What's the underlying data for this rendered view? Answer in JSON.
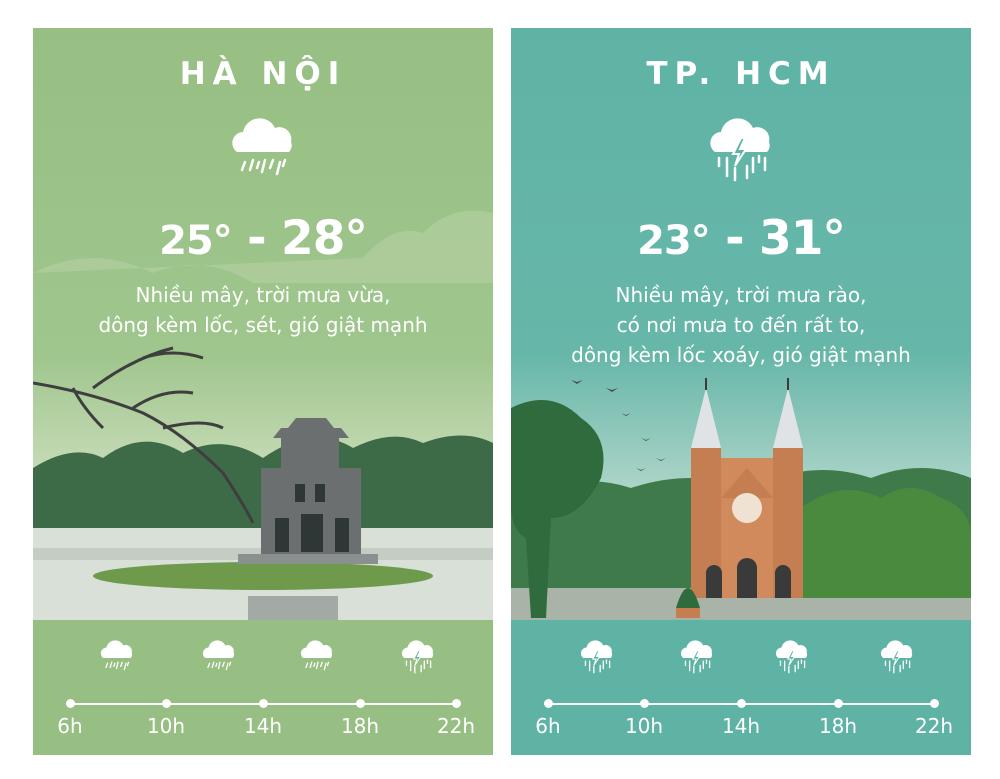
{
  "cities": [
    {
      "name": "HÀ NỘI",
      "temp_low": "25°",
      "temp_sep": "-",
      "temp_high": "28°",
      "description": [
        "Nhiều mây, trời mưa vừa,",
        "dông kèm lốc, sét, gió giật mạnh"
      ],
      "icon": "cloud-rain-icon",
      "color": "#97bf83",
      "timeline": [
        {
          "time": "6h",
          "icon": "cloud-rain-icon"
        },
        {
          "time": "10h",
          "icon": "cloud-rain-icon"
        },
        {
          "time": "14h",
          "icon": "cloud-rain-icon"
        },
        {
          "time": "18h",
          "icon": "cloud-storm-icon"
        },
        {
          "time": "22h"
        }
      ]
    },
    {
      "name": "TP. HCM",
      "temp_low": "23°",
      "temp_sep": "-",
      "temp_high": "31°",
      "description": [
        "Nhiều mây, trời mưa rào,",
        "có nơi mưa to đến rất to,",
        "dông kèm lốc xoáy, gió giật mạnh"
      ],
      "icon": "cloud-storm-icon",
      "color": "#5fb3a5",
      "timeline": [
        {
          "time": "6h",
          "icon": "cloud-storm-icon"
        },
        {
          "time": "10h",
          "icon": "cloud-storm-icon"
        },
        {
          "time": "14h",
          "icon": "cloud-storm-icon"
        },
        {
          "time": "18h",
          "icon": "cloud-storm-icon"
        },
        {
          "time": "22h"
        }
      ]
    }
  ]
}
